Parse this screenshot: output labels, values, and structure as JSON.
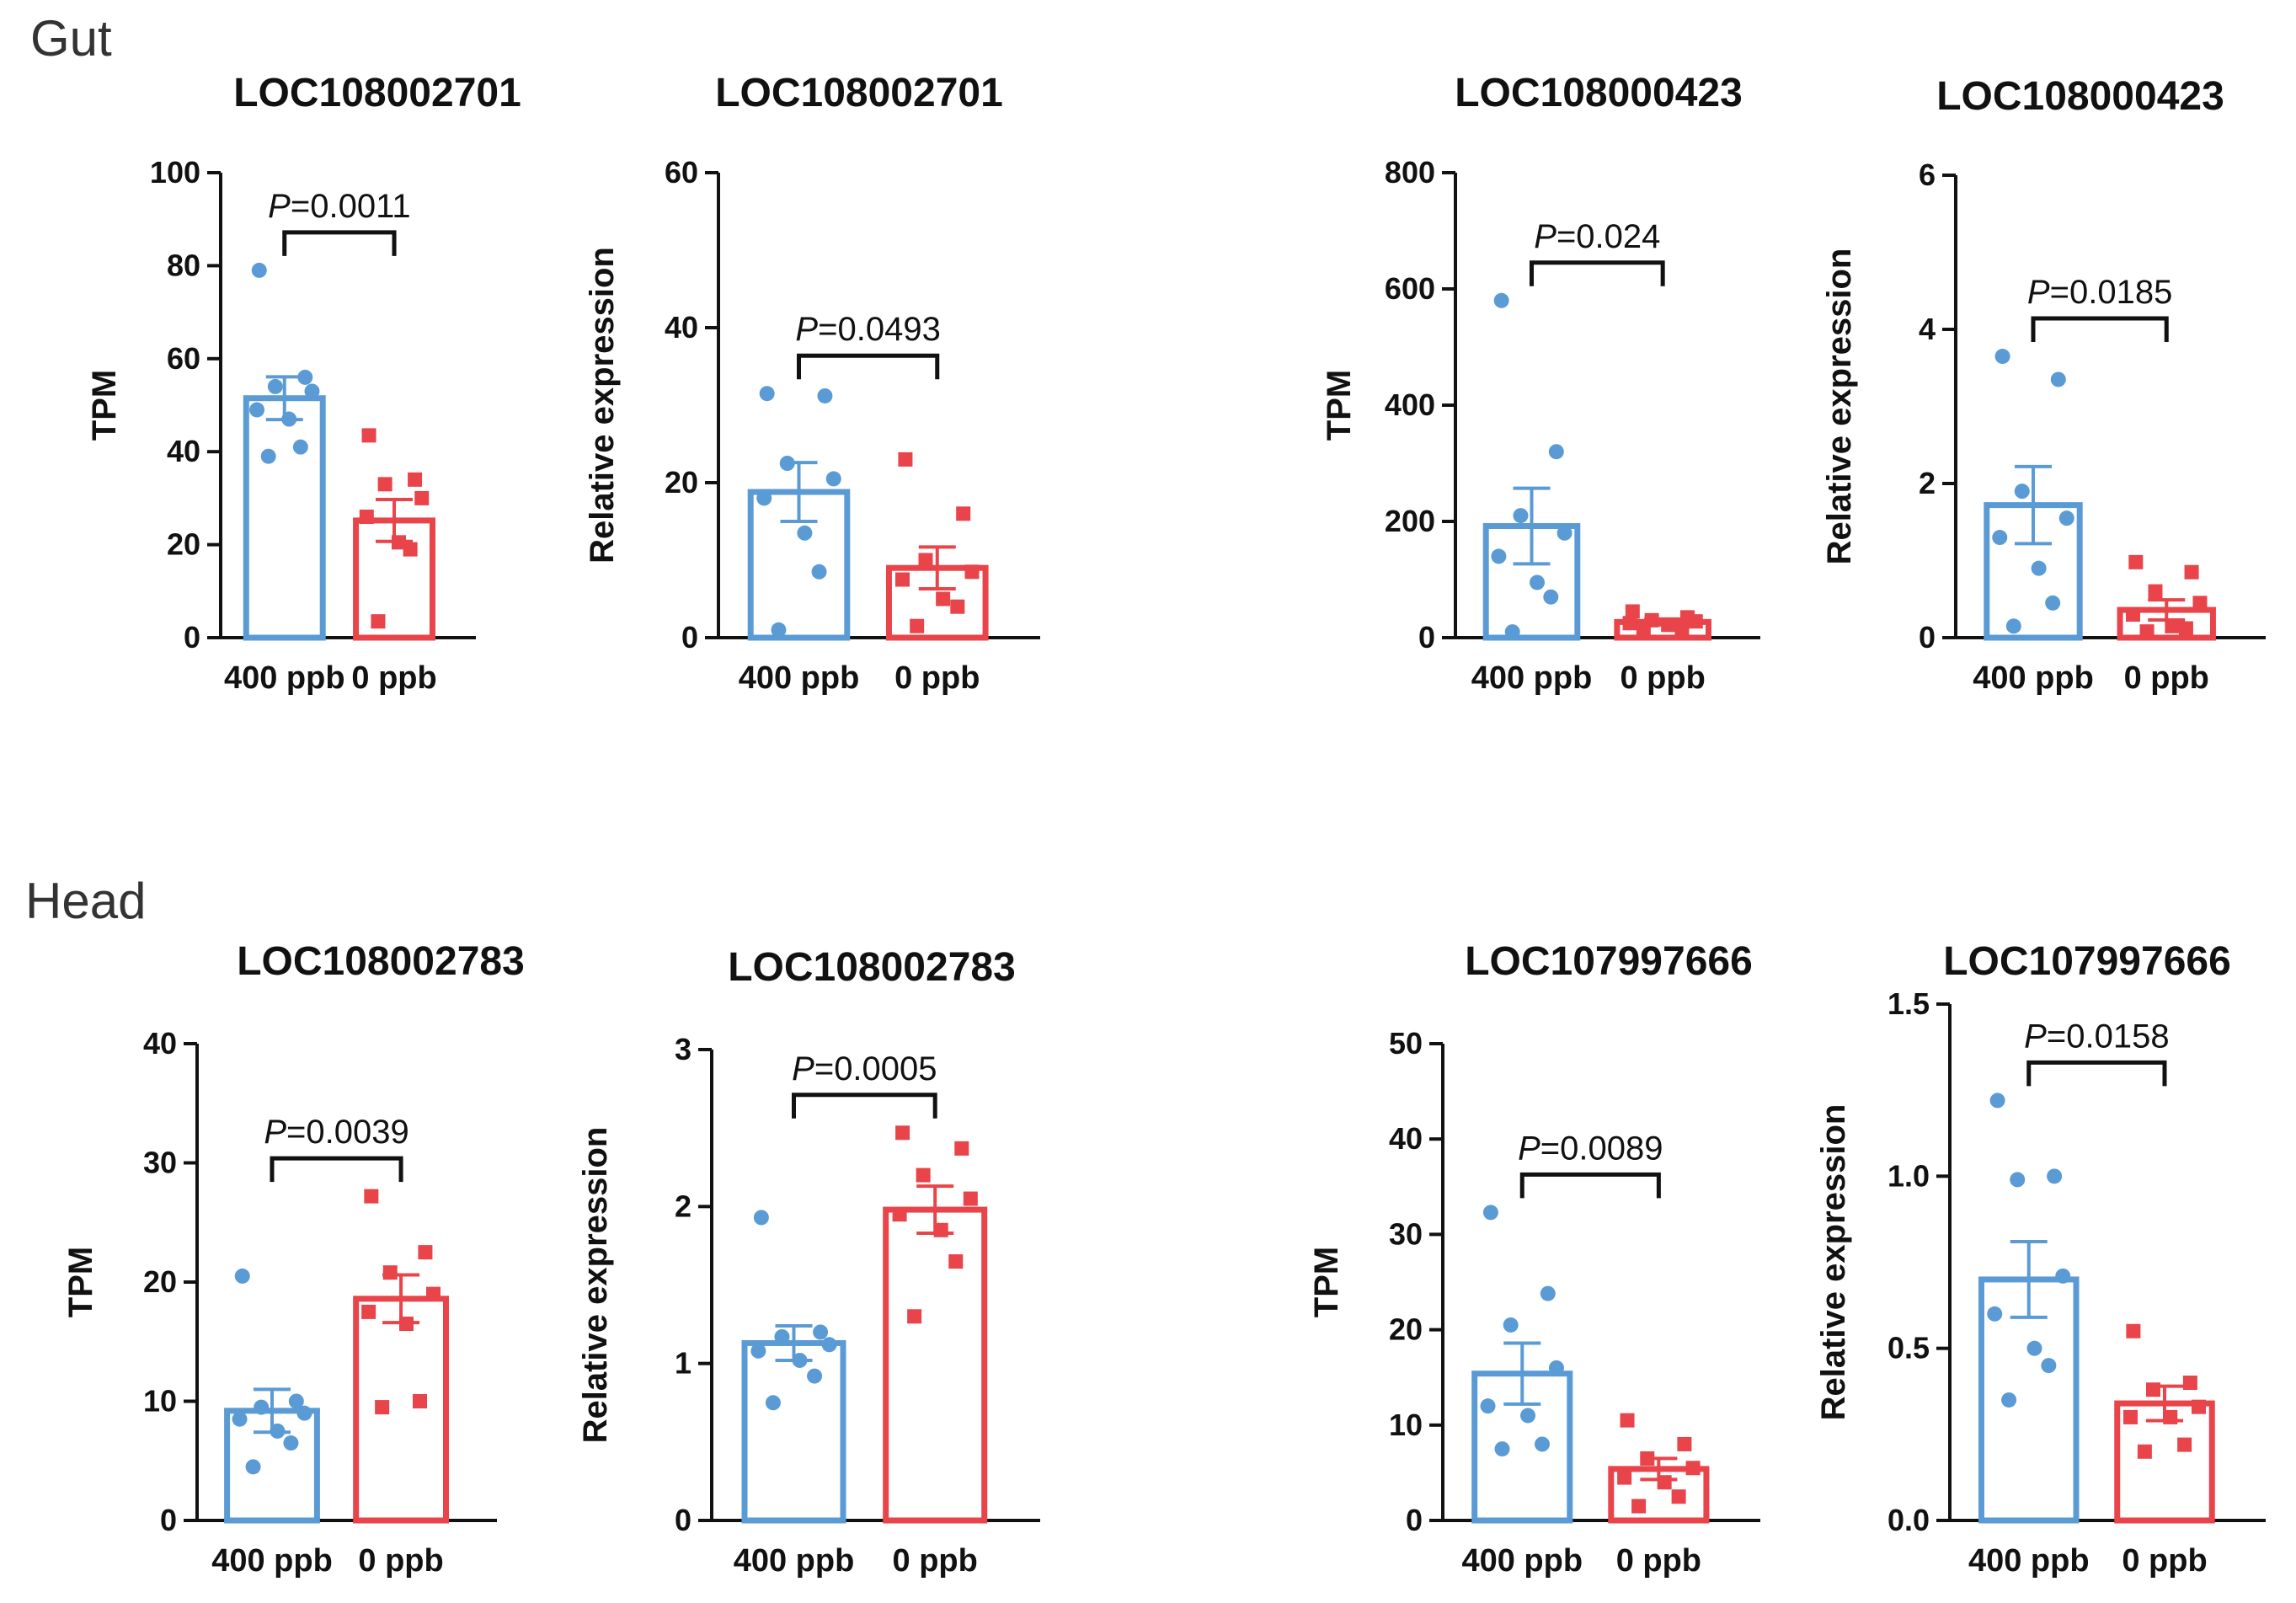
{
  "sections": [
    {
      "id": "gut",
      "label": "Gut"
    },
    {
      "id": "head",
      "label": "Head"
    }
  ],
  "colors": {
    "group1": "#5b9bd5",
    "group2": "#e8444a",
    "axis": "#111111"
  },
  "chart_data": [
    {
      "type": "bar",
      "section": "Gut",
      "title": "LOC108002701",
      "ylabel": "TPM",
      "ylim": [
        0,
        100
      ],
      "yticks": [
        0,
        20,
        40,
        60,
        80,
        100
      ],
      "ytick_labels": [
        "0",
        "20",
        "40",
        "60",
        "80",
        "100"
      ],
      "categories": [
        "400 ppb",
        "0 ppb"
      ],
      "values": [
        51.5,
        25.2
      ],
      "sem": [
        4.6,
        4.5
      ],
      "points": [
        [
          79,
          56,
          54,
          53,
          49,
          47,
          41,
          39
        ],
        [
          43.5,
          34,
          33,
          30,
          26,
          20.5,
          19,
          3.5
        ]
      ],
      "p_prefix": "P",
      "p_value": "=0.0011"
    },
    {
      "type": "bar",
      "section": "Gut",
      "title": "LOC108002701",
      "ylabel": "Relative expression",
      "ylim": [
        0,
        60
      ],
      "yticks": [
        0,
        20,
        40,
        60
      ],
      "ytick_labels": [
        "0",
        "20",
        "40",
        "60"
      ],
      "categories": [
        "400 ppb",
        "0 ppb"
      ],
      "values": [
        18.8,
        9.0
      ],
      "sem": [
        3.8,
        2.7
      ],
      "points": [
        [
          31.5,
          31.2,
          22.5,
          20.5,
          18,
          13.5,
          8.5,
          1
        ],
        [
          23,
          16,
          10,
          8.5,
          7.5,
          5,
          4,
          1.5
        ]
      ],
      "p_prefix": "P",
      "p_value": "=0.0493"
    },
    {
      "type": "bar",
      "section": "Gut",
      "title": "LOC108000423",
      "ylabel": "TPM",
      "ylim": [
        0,
        800
      ],
      "yticks": [
        0,
        200,
        400,
        600,
        800
      ],
      "ytick_labels": [
        "0",
        "200",
        "400",
        "600",
        "800"
      ],
      "categories": [
        "400 ppb",
        "0 ppb"
      ],
      "values": [
        192,
        27
      ],
      "sem": [
        65,
        5
      ],
      "points": [
        [
          580,
          320,
          210,
          180,
          140,
          95,
          70,
          10
        ],
        [
          45,
          35,
          30,
          28,
          25,
          22,
          15,
          10
        ]
      ],
      "p_prefix": "P",
      "p_value": "=0.024"
    },
    {
      "type": "bar",
      "section": "Gut",
      "title": "LOC108000423",
      "ylabel": "Relative expression",
      "ylim": [
        0,
        6
      ],
      "yticks": [
        0,
        2,
        4,
        6
      ],
      "ytick_labels": [
        "0",
        "2",
        "4",
        "6"
      ],
      "categories": [
        "400 ppb",
        "0 ppb"
      ],
      "values": [
        1.72,
        0.36
      ],
      "sem": [
        0.5,
        0.13
      ],
      "points": [
        [
          3.65,
          3.35,
          1.9,
          1.55,
          1.3,
          0.9,
          0.45,
          0.15
        ],
        [
          0.98,
          0.85,
          0.6,
          0.45,
          0.3,
          0.15,
          0.12,
          0.08
        ]
      ],
      "p_prefix": "P",
      "p_value": "=0.0185"
    },
    {
      "type": "bar",
      "section": "Head",
      "title": "LOC108002783",
      "ylabel": "TPM",
      "ylim": [
        0,
        40
      ],
      "yticks": [
        0,
        10,
        20,
        30,
        40
      ],
      "ytick_labels": [
        "0",
        "10",
        "20",
        "30",
        "40"
      ],
      "categories": [
        "400 ppb",
        "0 ppb"
      ],
      "values": [
        9.2,
        18.6
      ],
      "sem": [
        1.8,
        2.0
      ],
      "points": [
        [
          20.5,
          10,
          9.5,
          9,
          8.5,
          7.5,
          6.5,
          4.5
        ],
        [
          27.2,
          22.5,
          20.8,
          19,
          17.5,
          16.5,
          10,
          9.5
        ]
      ],
      "p_prefix": "P",
      "p_value": "=0.0039"
    },
    {
      "type": "bar",
      "section": "Head",
      "title": "LOC108002783",
      "ylabel": "Relative expression",
      "ylim": [
        0,
        3
      ],
      "yticks": [
        0,
        1,
        2,
        3
      ],
      "ytick_labels": [
        "0",
        "1",
        "2",
        "3"
      ],
      "categories": [
        "400 ppb",
        "0 ppb"
      ],
      "values": [
        1.13,
        1.98
      ],
      "sem": [
        0.11,
        0.15
      ],
      "points": [
        [
          1.93,
          1.2,
          1.17,
          1.12,
          1.08,
          1.02,
          0.92,
          0.75
        ],
        [
          2.47,
          2.37,
          2.2,
          2.05,
          1.95,
          1.85,
          1.65,
          1.3
        ]
      ],
      "p_prefix": "P",
      "p_value": "=0.0005"
    },
    {
      "type": "bar",
      "section": "Head",
      "title": "LOC107997666",
      "ylabel": "TPM",
      "ylim": [
        0,
        50
      ],
      "yticks": [
        0,
        10,
        20,
        30,
        40,
        50
      ],
      "ytick_labels": [
        "0",
        "10",
        "20",
        "30",
        "40",
        "50"
      ],
      "categories": [
        "400 ppb",
        "0 ppb"
      ],
      "values": [
        15.4,
        5.4
      ],
      "sem": [
        3.2,
        1.1
      ],
      "points": [
        [
          32.3,
          23.8,
          20.5,
          16,
          12,
          11,
          8,
          7.5
        ],
        [
          10.5,
          8,
          6.5,
          5.5,
          4.5,
          4,
          2.5,
          1.5
        ]
      ],
      "p_prefix": "P",
      "p_value": "=0.0089"
    },
    {
      "type": "bar",
      "section": "Head",
      "title": "LOC107997666",
      "ylabel": "Relative expression",
      "ylim": [
        0,
        1.5
      ],
      "yticks": [
        0,
        0.5,
        1.0,
        1.5
      ],
      "ytick_labels": [
        "0.0",
        "0.5",
        "1.0",
        "1.5"
      ],
      "categories": [
        "400 ppb",
        "0 ppb"
      ],
      "values": [
        0.7,
        0.34
      ],
      "sem": [
        0.11,
        0.05
      ],
      "points": [
        [
          1.22,
          1.0,
          0.99,
          0.71,
          0.6,
          0.5,
          0.45,
          0.35
        ],
        [
          0.55,
          0.4,
          0.38,
          0.33,
          0.3,
          0.3,
          0.22,
          0.2
        ]
      ],
      "p_prefix": "P",
      "p_value": "=0.0158"
    }
  ]
}
